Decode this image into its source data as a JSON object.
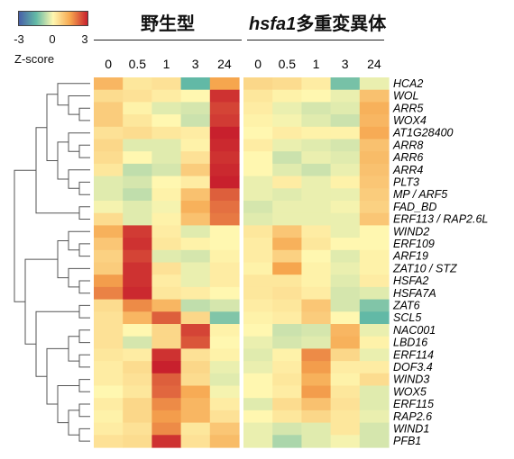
{
  "legend": {
    "ticks": [
      "-3",
      "0",
      "3"
    ],
    "title": "Z-score",
    "colors": [
      "#4860a8",
      "#62b9a6",
      "#fff7b0",
      "#f6a64e",
      "#c8202d"
    ]
  },
  "groups": {
    "wild_type": "野生型",
    "mutant_italic": "hsfa1",
    "mutant_suffix": "多重変異体"
  },
  "chart_data": {
    "type": "heatmap",
    "title": "",
    "value_range": [
      -3,
      3
    ],
    "groups": [
      {
        "name": "野生型",
        "columns": [
          "0",
          "0.5",
          "1",
          "3",
          "24"
        ]
      },
      {
        "name": "hsfa1多重変異体",
        "columns": [
          "0",
          "0.5",
          "1",
          "3",
          "24"
        ]
      }
    ],
    "rows": [
      "HCA2",
      "WOL",
      "ARR5",
      "WOX4",
      "AT1G28400",
      "ARR8",
      "ARR6",
      "ARR4",
      "PLT3",
      "MP / ARF5",
      "FAD_BD",
      "ERF113 / RAP2.6L",
      "WIND2",
      "ERF109",
      "ARF19",
      "ZAT10 / STZ",
      "HSFA2",
      "HSFA7A",
      "ZAT6",
      "SCL5",
      "NAC001",
      "LBD16",
      "ERF114",
      "DOF3.4",
      "WIND3",
      "WOX5",
      "ERF115",
      "RAP2.6",
      "WIND1",
      "PFB1"
    ],
    "values": [
      [
        1.2,
        0.3,
        0.4,
        -1.5,
        1.5,
        0.6,
        0.5,
        0.2,
        -1.3,
        -0.2
      ],
      [
        0.5,
        0.4,
        0.2,
        0.0,
        2.8,
        0.3,
        0.1,
        0.0,
        -0.2,
        1.0
      ],
      [
        0.8,
        0.1,
        -0.3,
        -0.4,
        2.6,
        0.2,
        -0.2,
        -0.4,
        -0.3,
        1.3
      ],
      [
        0.8,
        0.3,
        0.0,
        -0.5,
        2.7,
        0.1,
        -0.1,
        -0.3,
        -0.5,
        1.2
      ],
      [
        0.4,
        0.5,
        0.3,
        0.2,
        3.0,
        0.0,
        0.2,
        0.1,
        0.1,
        1.4
      ],
      [
        0.6,
        -0.3,
        -0.3,
        0.1,
        2.9,
        0.2,
        -0.2,
        -0.3,
        -0.4,
        1.0
      ],
      [
        0.5,
        0.0,
        -0.3,
        0.4,
        2.8,
        0.0,
        -0.5,
        -0.2,
        -0.3,
        1.1
      ],
      [
        0.3,
        -0.6,
        -0.4,
        0.8,
        2.9,
        0.0,
        -0.3,
        -0.5,
        -0.2,
        1.0
      ],
      [
        -0.3,
        -0.4,
        0.0,
        0.2,
        3.0,
        -0.2,
        0.2,
        -0.2,
        0.1,
        0.9
      ],
      [
        -0.3,
        -0.6,
        0.1,
        1.0,
        2.3,
        -0.2,
        -0.3,
        -0.2,
        -0.2,
        0.8
      ],
      [
        -0.1,
        -0.3,
        -0.1,
        1.3,
        2.1,
        -0.4,
        -0.2,
        -0.2,
        -0.1,
        0.7
      ],
      [
        0.5,
        -0.3,
        0.1,
        1.0,
        2.0,
        -0.3,
        -0.2,
        -0.2,
        -0.2,
        0.9
      ],
      [
        1.3,
        2.7,
        0.2,
        -0.3,
        0.0,
        0.3,
        0.9,
        0.2,
        -0.2,
        0.0
      ],
      [
        0.9,
        2.8,
        0.3,
        0.1,
        0.0,
        0.2,
        1.3,
        0.3,
        0.0,
        0.0
      ],
      [
        0.7,
        2.6,
        -0.3,
        -0.4,
        0.1,
        0.2,
        0.7,
        0.0,
        -0.3,
        0.1
      ],
      [
        0.8,
        2.8,
        0.4,
        -0.2,
        0.2,
        0.1,
        1.5,
        0.1,
        -0.2,
        0.1
      ],
      [
        1.6,
        2.8,
        0.2,
        -0.2,
        0.2,
        0.3,
        0.3,
        0.1,
        -0.3,
        0.2
      ],
      [
        1.9,
        2.9,
        0.3,
        0.2,
        0.0,
        0.3,
        0.4,
        0.2,
        -0.4,
        -0.3
      ],
      [
        0.5,
        1.8,
        1.2,
        -0.6,
        -0.4,
        0.2,
        0.3,
        0.9,
        -0.4,
        -1.2
      ],
      [
        0.4,
        1.2,
        2.3,
        0.6,
        -1.2,
        0.1,
        0.2,
        0.8,
        0.0,
        -1.5
      ],
      [
        0.4,
        0.0,
        0.6,
        2.6,
        0.1,
        0.0,
        -0.5,
        -0.4,
        1.2,
        -0.2
      ],
      [
        0.4,
        -0.4,
        0.6,
        2.4,
        0.0,
        -0.2,
        -0.4,
        -0.3,
        1.3,
        0.1
      ],
      [
        0.3,
        0.2,
        2.8,
        0.4,
        0.1,
        -0.3,
        0.1,
        1.8,
        0.6,
        -0.2
      ],
      [
        0.2,
        0.5,
        3.0,
        0.6,
        -0.2,
        -0.2,
        0.2,
        1.6,
        0.2,
        0.2
      ],
      [
        0.2,
        0.4,
        2.3,
        0.5,
        -0.3,
        0.0,
        0.3,
        1.3,
        0.1,
        0.5
      ],
      [
        0.0,
        0.3,
        2.2,
        1.4,
        -0.1,
        0.0,
        0.2,
        1.6,
        0.3,
        -0.3
      ],
      [
        0.2,
        0.6,
        1.8,
        1.2,
        0.2,
        -0.3,
        0.5,
        1.0,
        0.4,
        -0.3
      ],
      [
        0.1,
        0.6,
        1.6,
        1.2,
        0.4,
        0.0,
        0.3,
        0.6,
        0.3,
        -0.2
      ],
      [
        0.2,
        0.4,
        1.8,
        0.3,
        0.9,
        -0.2,
        -0.4,
        -0.3,
        0.3,
        -0.4
      ],
      [
        0.4,
        0.5,
        2.8,
        0.4,
        1.1,
        -0.2,
        -0.8,
        -0.3,
        -0.1,
        -0.4
      ]
    ]
  }
}
